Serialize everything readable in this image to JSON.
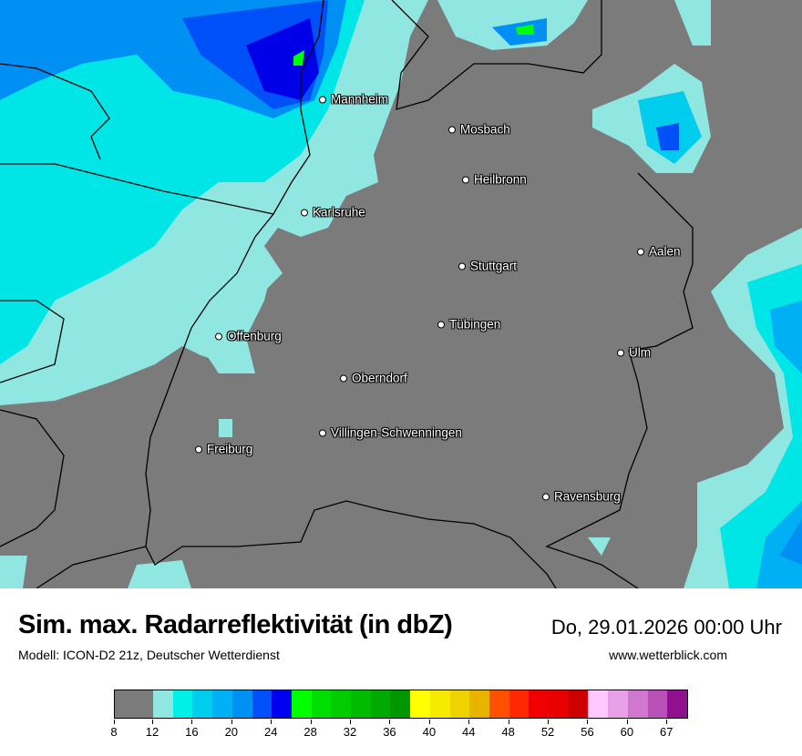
{
  "title": "Sim. max. Radarreflektivität (in dbZ)",
  "datetime": "Do, 29.01.2026 00:00 Uhr",
  "model": "Modell: ICON-D2 21z, Deutscher Wetterdienst",
  "website": "www.wetterblick.com",
  "colors": {
    "background_map": "#7b7b7b",
    "light_cyan": "#90e6e0",
    "cyan": "#00f0e8",
    "blue": "#0050f8",
    "green": "#00ff00"
  },
  "cities": [
    "Mannheim",
    "Mosbach",
    "Heilbronn",
    "Karlsruhe",
    "Aalen",
    "Stuttgart",
    "Tübingen",
    "Offenburg",
    "Ulm",
    "Oberndorf",
    "Villingen-Schwenningen",
    "Freiburg",
    "Ravensburg"
  ],
  "legend": {
    "unit": "dbZ",
    "bands": [
      {
        "from": 8,
        "to": 12,
        "color": "#7b7b7b"
      },
      {
        "from": 12,
        "to": 14,
        "color": "#90e6e0"
      },
      {
        "from": 14,
        "to": 16,
        "color": "#00f0e8"
      },
      {
        "from": 16,
        "to": 18,
        "color": "#00ccee"
      },
      {
        "from": 18,
        "to": 20,
        "color": "#00b0f4"
      },
      {
        "from": 20,
        "to": 22,
        "color": "#0090f4"
      },
      {
        "from": 22,
        "to": 24,
        "color": "#0050f8"
      },
      {
        "from": 24,
        "to": 26,
        "color": "#0000f0"
      },
      {
        "from": 26,
        "to": 28,
        "color": "#00ff00"
      },
      {
        "from": 28,
        "to": 30,
        "color": "#00dd00"
      },
      {
        "from": 30,
        "to": 32,
        "color": "#00cc00"
      },
      {
        "from": 32,
        "to": 34,
        "color": "#00bb00"
      },
      {
        "from": 34,
        "to": 36,
        "color": "#00aa00"
      },
      {
        "from": 36,
        "to": 38,
        "color": "#009600"
      },
      {
        "from": 38,
        "to": 40,
        "color": "#ffff00"
      },
      {
        "from": 40,
        "to": 42,
        "color": "#f6ea00"
      },
      {
        "from": 42,
        "to": 44,
        "color": "#f0d200"
      },
      {
        "from": 44,
        "to": 46,
        "color": "#e8b400"
      },
      {
        "from": 46,
        "to": 48,
        "color": "#ff5000"
      },
      {
        "from": 48,
        "to": 50,
        "color": "#ff2800"
      },
      {
        "from": 50,
        "to": 52,
        "color": "#f00000"
      },
      {
        "from": 52,
        "to": 54,
        "color": "#e80000"
      },
      {
        "from": 54,
        "to": 56,
        "color": "#cc0000"
      },
      {
        "from": 56,
        "to": 58,
        "color": "#ffc8ff"
      },
      {
        "from": 58,
        "to": 60,
        "color": "#e8a0e8"
      },
      {
        "from": 60,
        "to": 63,
        "color": "#d078d0"
      },
      {
        "from": 63,
        "to": 67,
        "color": "#b850b8"
      },
      {
        "from": 67,
        "to": null,
        "color": "#901090"
      }
    ],
    "tick_labels": [
      "8",
      "12",
      "16",
      "20",
      "24",
      "28",
      "32",
      "36",
      "40",
      "44",
      "48",
      "52",
      "56",
      "60",
      "67"
    ]
  }
}
